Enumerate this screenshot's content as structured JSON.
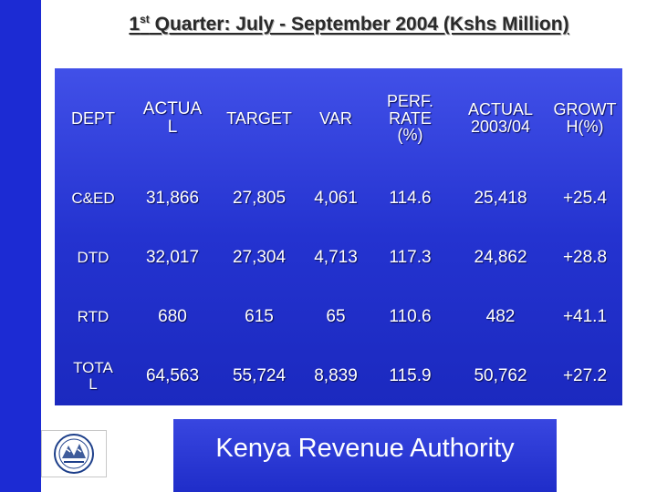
{
  "title": {
    "ordinal_num": "1",
    "ordinal_suffix": "st",
    "text": " Quarter: July - September 2004 (Kshs Million)"
  },
  "table": {
    "headers": [
      [
        "DEPT"
      ],
      [
        "ACTUA",
        "L"
      ],
      [
        "TARGET"
      ],
      [
        "VAR"
      ],
      [
        "PERF.",
        "RATE",
        "(%)"
      ],
      [
        "ACTUAL",
        "2003/04"
      ],
      [
        "GROWT",
        "H(%)"
      ]
    ],
    "rows": [
      {
        "dept": [
          "C&ED"
        ],
        "actual": "31,866",
        "target": "27,805",
        "var": "4,061",
        "perf_rate": "114.6",
        "actual_prev": "25,418",
        "growth": "+25.4"
      },
      {
        "dept": [
          "DTD"
        ],
        "actual": "32,017",
        "target": "27,304",
        "var": "4,713",
        "perf_rate": "117.3",
        "actual_prev": "24,862",
        "growth": "+28.8"
      },
      {
        "dept": [
          "RTD"
        ],
        "actual": "680",
        "target": "615",
        "var": "65",
        "perf_rate": "110.6",
        "actual_prev": "482",
        "growth": "+41.1"
      },
      {
        "dept": [
          "TOTA",
          "L"
        ],
        "actual": "64,563",
        "target": "55,724",
        "var": "8,839",
        "perf_rate": "115.9",
        "actual_prev": "50,762",
        "growth": "+27.2"
      }
    ]
  },
  "footer": {
    "organization": "Kenya Revenue Authority",
    "logo_icon": "kra-emblem-icon"
  },
  "colors": {
    "side_bar": "#1c2bd3",
    "table_background": "#2433d0",
    "text_on_blue": "#ffffff",
    "title_text": "#2a2a2a"
  }
}
